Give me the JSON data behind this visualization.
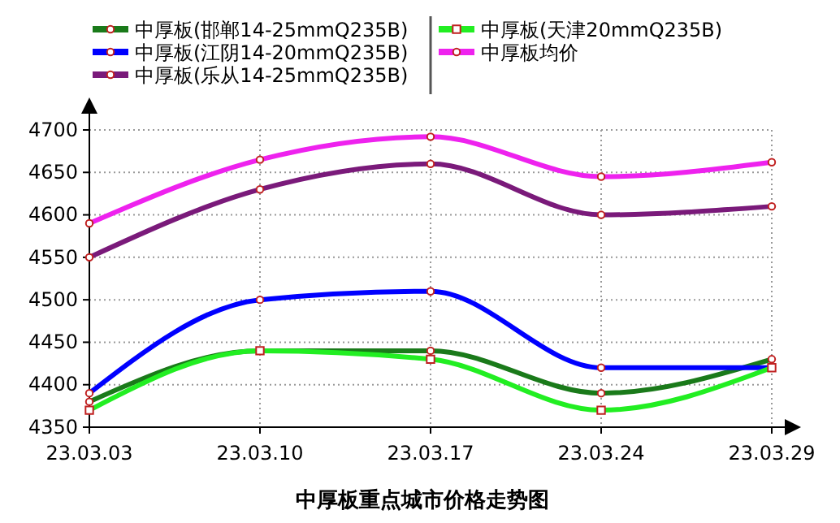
{
  "chart_data": {
    "type": "line",
    "title": "中厚板重点城市价格走势图",
    "categories": [
      "23.03.03",
      "23.03.10",
      "23.03.17",
      "23.03.24",
      "23.03.29"
    ],
    "series": [
      {
        "name": "中厚板(邯郸14-25mmQ235B)",
        "color": "#1a7a1a",
        "values": [
          4380,
          4440,
          4440,
          4390,
          4430
        ]
      },
      {
        "name": "中厚板(江阴14-20mmQ235B)",
        "color": "#0000ff",
        "values": [
          4390,
          4500,
          4510,
          4420,
          4420
        ]
      },
      {
        "name": "中厚板(乐从14-25mmQ235B)",
        "color": "#7a1a7a",
        "values": [
          4550,
          4630,
          4660,
          4600,
          4610
        ]
      },
      {
        "name": "中厚板(天津20mmQ235B)",
        "color": "#22ee22",
        "values": [
          4370,
          4440,
          4430,
          4370,
          4420
        ],
        "marker": "square"
      },
      {
        "name": "中厚板均价",
        "color": "#ee22ee",
        "values": [
          4590,
          4665,
          4692,
          4645,
          4662
        ]
      }
    ],
    "ylim": [
      4350,
      4700
    ],
    "yticks": [
      4350,
      4400,
      4450,
      4500,
      4550,
      4600,
      4650,
      4700
    ],
    "grid": true,
    "legend": "top",
    "marker": "circle",
    "line_style": "solid"
  }
}
